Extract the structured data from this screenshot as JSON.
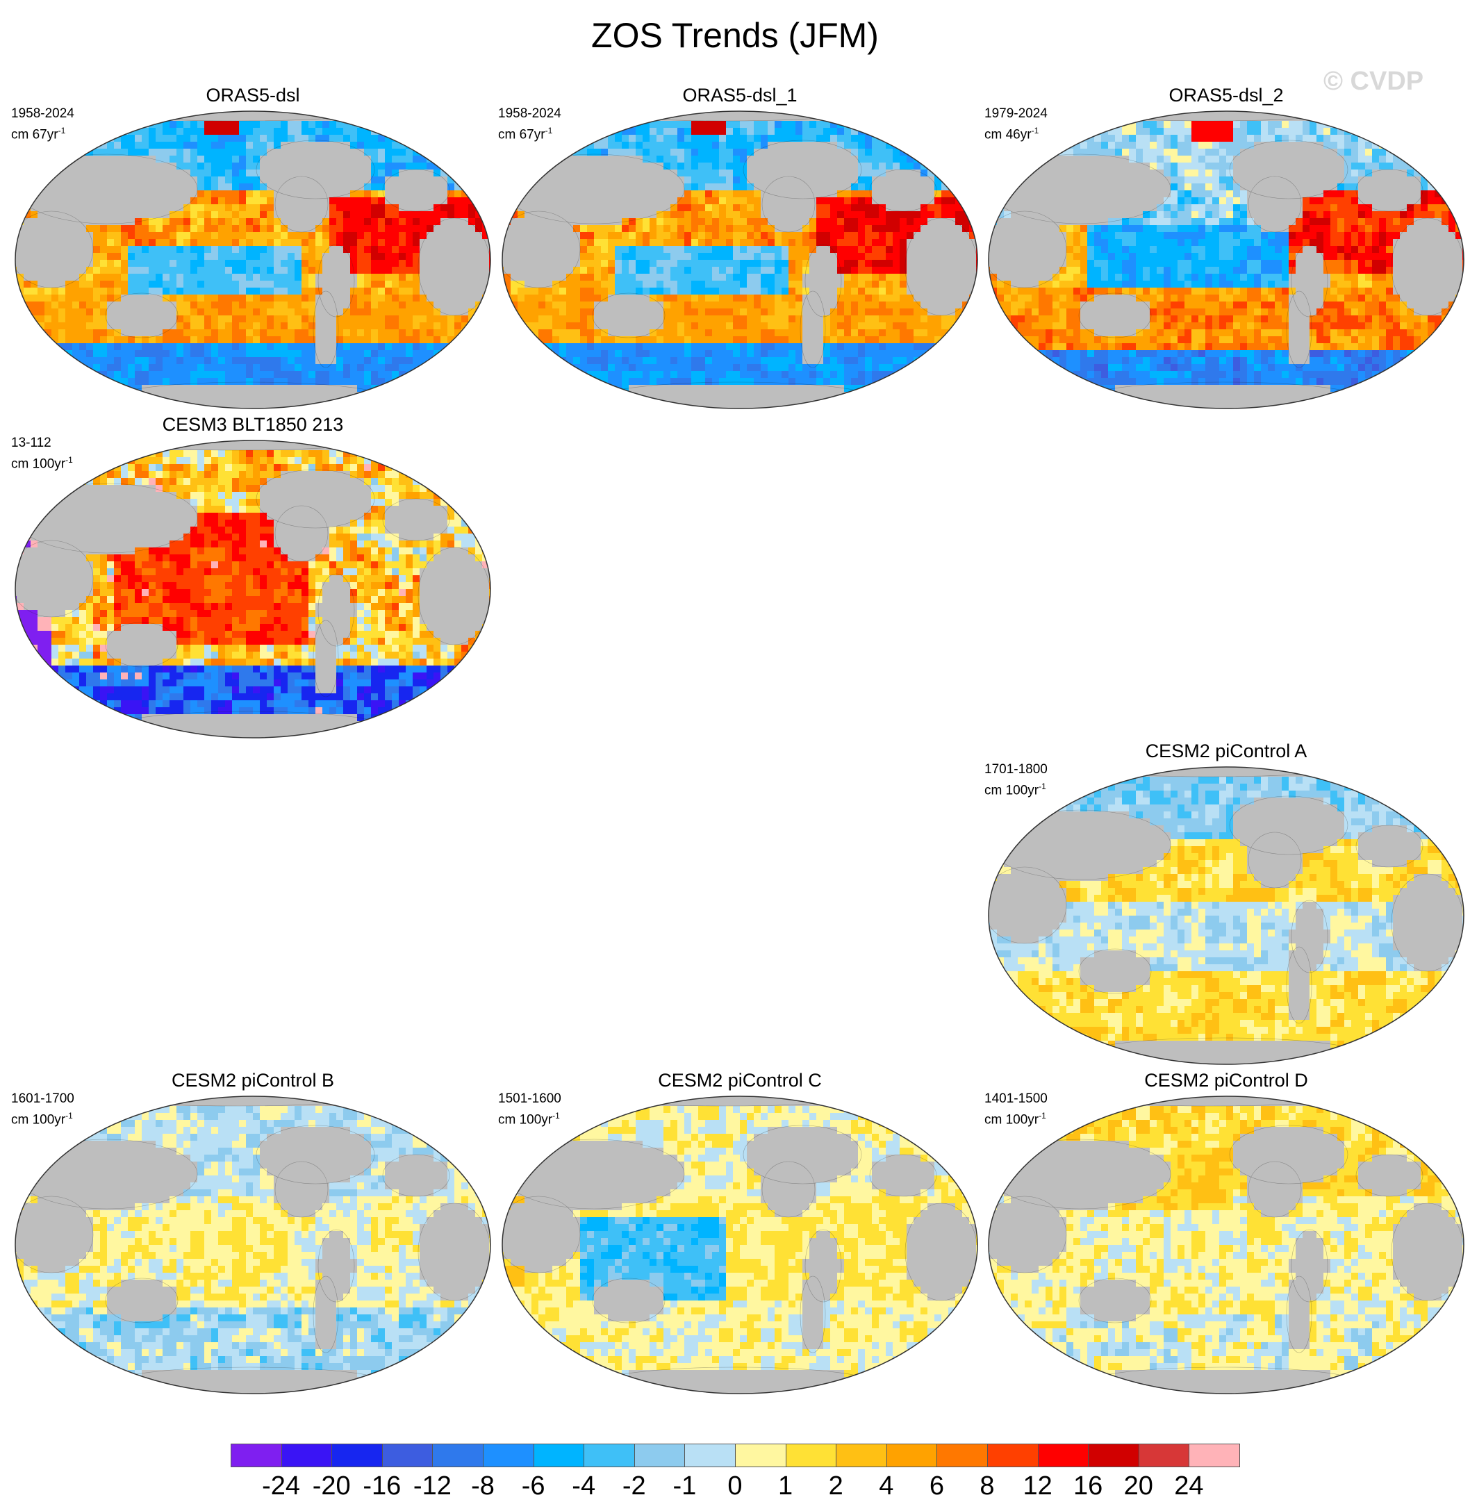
{
  "title": "ZOS Trends (JFM)",
  "watermark": "© CVDP",
  "panels": [
    {
      "id": "p1",
      "title": "ORAS5-dsl",
      "period": "1958-2024",
      "units_prefix": "cm 67yr",
      "units_exp": "-1",
      "style": "oras_a"
    },
    {
      "id": "p2",
      "title": "ORAS5-dsl_1",
      "period": "1958-2024",
      "units_prefix": "cm 67yr",
      "units_exp": "-1",
      "style": "oras_a"
    },
    {
      "id": "p3",
      "title": "ORAS5-dsl_2",
      "period": "1979-2024",
      "units_prefix": "cm 46yr",
      "units_exp": "-1",
      "style": "oras_b"
    },
    {
      "id": "p4",
      "title": "CESM3 BLT1850 213",
      "period": "13-112",
      "units_prefix": "cm 100yr",
      "units_exp": "-1",
      "style": "cesm3"
    },
    {
      "id": "p5",
      "title": "CESM2 piControl A",
      "period": "1701-1800",
      "units_prefix": "cm 100yr",
      "units_exp": "-1",
      "style": "pic_a"
    },
    {
      "id": "p6",
      "title": "CESM2 piControl B",
      "period": "1601-1700",
      "units_prefix": "cm 100yr",
      "units_exp": "-1",
      "style": "pic_b"
    },
    {
      "id": "p7",
      "title": "CESM2 piControl C",
      "period": "1501-1600",
      "units_prefix": "cm 100yr",
      "units_exp": "-1",
      "style": "pic_c"
    },
    {
      "id": "p8",
      "title": "CESM2 piControl D",
      "period": "1401-1500",
      "units_prefix": "cm 100yr",
      "units_exp": "-1",
      "style": "pic_d"
    }
  ],
  "colorbar": {
    "colors": [
      "#7f1ff0",
      "#3a14f5",
      "#1726f0",
      "#3d5de0",
      "#2f79ec",
      "#1e90ff",
      "#00b4ff",
      "#3fc0f7",
      "#8dcbee",
      "#b9e0f5",
      "#fff7a0",
      "#ffe135",
      "#ffc014",
      "#ffa200",
      "#ff7800",
      "#ff4000",
      "#ff0000",
      "#d10000",
      "#d73737",
      "#ffb3b8"
    ],
    "labels": [
      "-24",
      "-20",
      "-16",
      "-12",
      "-8",
      "-6",
      "-4",
      "-2",
      "-1",
      "0",
      "1",
      "2",
      "4",
      "6",
      "8",
      "12",
      "16",
      "20",
      "24"
    ]
  },
  "map_colors": {
    "land": "#bebebe",
    "ocean_missing": "#ffffff",
    "coast": "#222222"
  }
}
